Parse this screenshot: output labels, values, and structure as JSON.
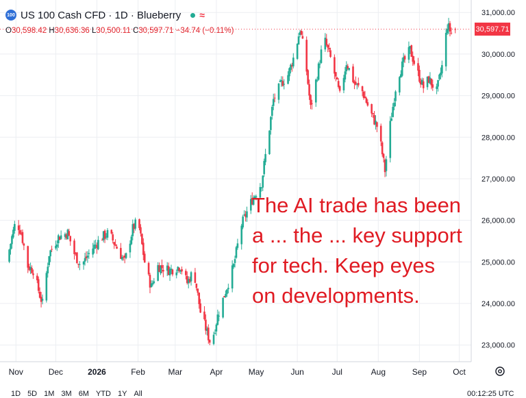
{
  "header": {
    "symbol_badge": "100",
    "title": "US 100 Cash CFD · 1D · Blueberry",
    "status_color": "#22ab94",
    "indicator_icon": "wave-icon",
    "indicator_glyph": "≈"
  },
  "ohlc": {
    "o_label": "O",
    "o_value": "30,598.42",
    "h_label": "H",
    "h_value": "30,636.36",
    "l_label": "L",
    "l_value": "30,500.11",
    "c_label": "C",
    "c_value": "30,597.71",
    "change": "−34.74 (−0.11%)"
  },
  "annotation": "The AI trade has been\na ... the ... key support\nfor tech. Keep eyes\non developments.",
  "last_price_label": "30,597.71",
  "colors": {
    "up": "#22ab94",
    "down": "#f23645",
    "annotation": "#e01b23"
  },
  "chart_data": {
    "type": "candlestick",
    "title": "US 100 Cash CFD · 1D · Blueberry",
    "xlabel": "",
    "ylabel": "",
    "ylim": [
      22600,
      31300
    ],
    "y_ticks": [
      23000,
      24000,
      25000,
      26000,
      27000,
      28000,
      29000,
      30000,
      31000
    ],
    "y_tick_labels": [
      "23,000.00",
      "24,000.00",
      "25,000.00",
      "26,000.00",
      "27,000.00",
      "28,000.00",
      "29,000.00",
      "30,000.00",
      "31,000.00"
    ],
    "x_tick_labels": [
      "Nov",
      "Dec",
      "2026",
      "Feb",
      "Mar",
      "Apr",
      "May",
      "Jun",
      "Jul",
      "Aug",
      "Sep",
      "Oct"
    ],
    "x_tick_dates": [
      "2025-11-01",
      "2025-12-01",
      "2026-01-01",
      "2026-02-01",
      "2026-03-01",
      "2026-04-01",
      "2026-05-01",
      "2026-06-01",
      "2026-07-01",
      "2026-08-01",
      "2026-09-01",
      "2026-10-01"
    ],
    "date_range": [
      "2025-10-25",
      "2026-09-28"
    ],
    "last_price": 30597.71,
    "grid": true,
    "close_path": [
      [
        "2025-10-25",
        25000
      ],
      [
        "2025-10-29",
        25600
      ],
      [
        "2025-11-01",
        26000
      ],
      [
        "2025-11-05",
        25700
      ],
      [
        "2025-11-10",
        24900
      ],
      [
        "2025-11-14",
        24800
      ],
      [
        "2025-11-19",
        24200
      ],
      [
        "2025-11-21",
        24000
      ],
      [
        "2025-11-26",
        25200
      ],
      [
        "2025-12-03",
        25600
      ],
      [
        "2025-12-10",
        25700
      ],
      [
        "2025-12-15",
        25200
      ],
      [
        "2025-12-20",
        24900
      ],
      [
        "2025-12-28",
        25300
      ],
      [
        "2026-01-05",
        25600
      ],
      [
        "2026-01-10",
        25700
      ],
      [
        "2026-01-15",
        25400
      ],
      [
        "2026-01-22",
        25000
      ],
      [
        "2026-01-28",
        25800
      ],
      [
        "2026-02-01",
        26000
      ],
      [
        "2026-02-03",
        25600
      ],
      [
        "2026-02-07",
        24800
      ],
      [
        "2026-02-11",
        24400
      ],
      [
        "2026-02-16",
        24900
      ],
      [
        "2026-02-25",
        24800
      ],
      [
        "2026-03-05",
        24900
      ],
      [
        "2026-03-10",
        24500
      ],
      [
        "2026-03-15",
        24800
      ],
      [
        "2026-03-20",
        23800
      ],
      [
        "2026-03-25",
        23300
      ],
      [
        "2026-03-28",
        23000
      ],
      [
        "2026-04-02",
        23700
      ],
      [
        "2026-04-08",
        24300
      ],
      [
        "2026-04-14",
        24900
      ],
      [
        "2026-04-20",
        25900
      ],
      [
        "2026-04-28",
        26500
      ],
      [
        "2026-05-05",
        26900
      ],
      [
        "2026-05-10",
        28000
      ],
      [
        "2026-05-14",
        28900
      ],
      [
        "2026-05-20",
        29300
      ],
      [
        "2026-05-25",
        29500
      ],
      [
        "2026-05-30",
        30000
      ],
      [
        "2026-06-03",
        30600
      ],
      [
        "2026-06-07",
        29900
      ],
      [
        "2026-06-11",
        28700
      ],
      [
        "2026-06-16",
        29500
      ],
      [
        "2026-06-21",
        30400
      ],
      [
        "2026-06-27",
        29800
      ],
      [
        "2026-07-03",
        29000
      ],
      [
        "2026-07-08",
        29800
      ],
      [
        "2026-07-14",
        29300
      ],
      [
        "2026-07-20",
        29100
      ],
      [
        "2026-07-26",
        28600
      ],
      [
        "2026-08-01",
        28200
      ],
      [
        "2026-08-06",
        27200
      ],
      [
        "2026-08-10",
        28300
      ],
      [
        "2026-08-15",
        29400
      ],
      [
        "2026-08-20",
        29800
      ],
      [
        "2026-08-25",
        30100
      ],
      [
        "2026-08-30",
        29600
      ],
      [
        "2026-09-04",
        29200
      ],
      [
        "2026-09-08",
        29400
      ],
      [
        "2026-09-14",
        29100
      ],
      [
        "2026-09-18",
        29700
      ],
      [
        "2026-09-22",
        30700
      ],
      [
        "2026-09-25",
        30500
      ],
      [
        "2026-09-28",
        30600
      ]
    ]
  },
  "bottom_bar": {
    "ranges": [
      "1D",
      "5D",
      "1M",
      "3M",
      "6M",
      "YTD",
      "1Y",
      "All"
    ],
    "time": "00:12:25 UTC"
  }
}
